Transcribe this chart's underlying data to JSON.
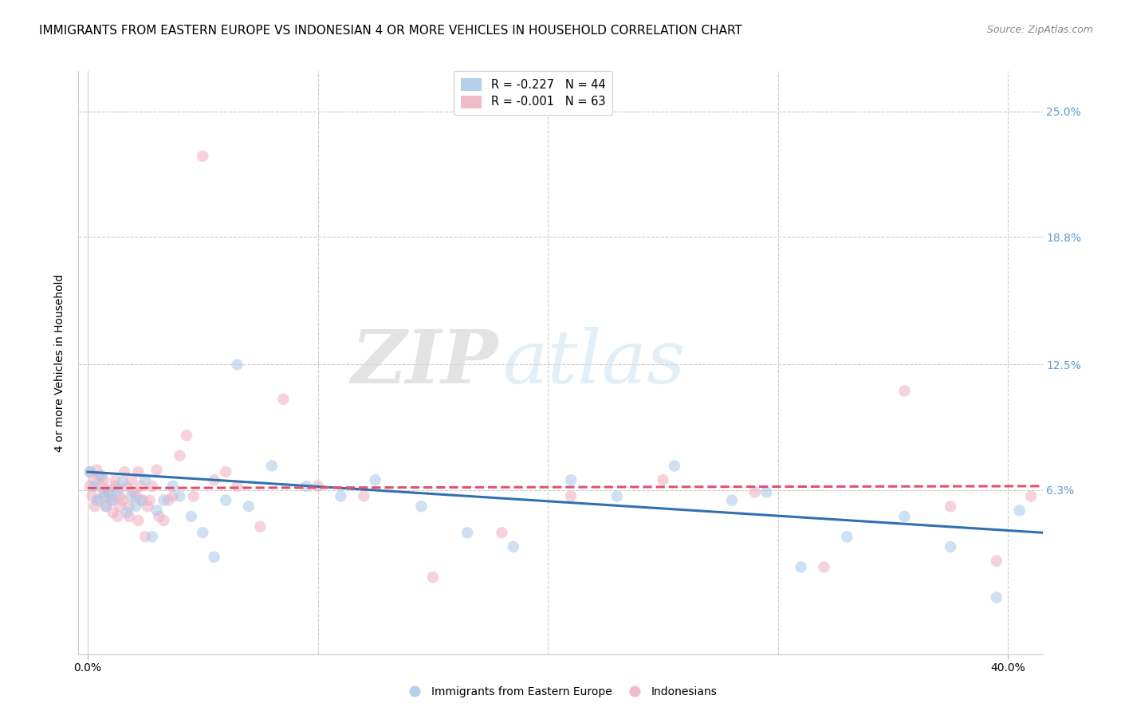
{
  "title": "IMMIGRANTS FROM EASTERN EUROPE VS INDONESIAN 4 OR MORE VEHICLES IN HOUSEHOLD CORRELATION CHART",
  "source": "Source: ZipAtlas.com",
  "ylabel": "4 or more Vehicles in Household",
  "ytick_values": [
    0.063,
    0.125,
    0.188,
    0.25
  ],
  "ytick_labels": [
    "6.3%",
    "12.5%",
    "18.8%",
    "25.0%"
  ],
  "ylim": [
    -0.018,
    0.27
  ],
  "xlim": [
    -0.004,
    0.415
  ],
  "xtick_positions": [
    0.0,
    0.1,
    0.2,
    0.3,
    0.4
  ],
  "xtick_labels": [
    "0.0%",
    "",
    "",
    "",
    "40.0%"
  ],
  "legend1_entries": [
    {
      "label": "R = -0.227   N = 44",
      "color": "#a8c8e8"
    },
    {
      "label": "R = -0.001   N = 63",
      "color": "#f0b0c0"
    }
  ],
  "blue_scatter_x": [
    0.001,
    0.003,
    0.004,
    0.006,
    0.007,
    0.008,
    0.009,
    0.011,
    0.013,
    0.015,
    0.017,
    0.019,
    0.021,
    0.023,
    0.025,
    0.028,
    0.03,
    0.033,
    0.037,
    0.04,
    0.045,
    0.05,
    0.055,
    0.06,
    0.065,
    0.07,
    0.08,
    0.095,
    0.11,
    0.125,
    0.145,
    0.165,
    0.185,
    0.21,
    0.23,
    0.255,
    0.28,
    0.295,
    0.31,
    0.33,
    0.355,
    0.375,
    0.395,
    0.405
  ],
  "blue_scatter_y": [
    0.072,
    0.065,
    0.058,
    0.07,
    0.06,
    0.055,
    0.062,
    0.058,
    0.063,
    0.067,
    0.052,
    0.06,
    0.055,
    0.058,
    0.068,
    0.04,
    0.053,
    0.058,
    0.065,
    0.06,
    0.05,
    0.042,
    0.03,
    0.058,
    0.125,
    0.055,
    0.075,
    0.065,
    0.06,
    0.068,
    0.055,
    0.042,
    0.035,
    0.068,
    0.06,
    0.075,
    0.058,
    0.062,
    0.025,
    0.04,
    0.05,
    0.035,
    0.01,
    0.053
  ],
  "pink_scatter_x": [
    0.001,
    0.001,
    0.002,
    0.003,
    0.003,
    0.004,
    0.005,
    0.005,
    0.006,
    0.007,
    0.007,
    0.008,
    0.009,
    0.01,
    0.01,
    0.011,
    0.012,
    0.012,
    0.013,
    0.014,
    0.014,
    0.015,
    0.016,
    0.017,
    0.018,
    0.018,
    0.019,
    0.02,
    0.021,
    0.022,
    0.022,
    0.023,
    0.024,
    0.025,
    0.026,
    0.027,
    0.028,
    0.03,
    0.031,
    0.033,
    0.035,
    0.037,
    0.04,
    0.043,
    0.046,
    0.05,
    0.055,
    0.06,
    0.065,
    0.075,
    0.085,
    0.1,
    0.12,
    0.15,
    0.18,
    0.21,
    0.25,
    0.29,
    0.32,
    0.355,
    0.375,
    0.395,
    0.41
  ],
  "pink_scatter_y": [
    0.065,
    0.072,
    0.06,
    0.068,
    0.055,
    0.073,
    0.07,
    0.058,
    0.065,
    0.062,
    0.068,
    0.055,
    0.063,
    0.06,
    0.058,
    0.052,
    0.068,
    0.065,
    0.05,
    0.06,
    0.055,
    0.058,
    0.072,
    0.065,
    0.055,
    0.05,
    0.068,
    0.062,
    0.06,
    0.072,
    0.048,
    0.065,
    0.058,
    0.04,
    0.055,
    0.058,
    0.065,
    0.073,
    0.05,
    0.048,
    0.058,
    0.06,
    0.08,
    0.09,
    0.06,
    0.228,
    0.068,
    0.072,
    0.065,
    0.045,
    0.108,
    0.065,
    0.06,
    0.02,
    0.042,
    0.06,
    0.068,
    0.062,
    0.025,
    0.112,
    0.055,
    0.028,
    0.06
  ],
  "blue_line_x": [
    0.0,
    0.415
  ],
  "blue_line_y": [
    0.072,
    0.042
  ],
  "pink_line_x": [
    0.0,
    0.415
  ],
  "pink_line_y": [
    0.064,
    0.065
  ],
  "scatter_size": 110,
  "scatter_alpha": 0.55,
  "blue_color": "#a8c8e8",
  "pink_color": "#f0b0c0",
  "blue_line_color": "#3070b0",
  "pink_line_color": "#e05070",
  "grid_color": "#cccccc",
  "bg_color": "#ffffff",
  "title_fontsize": 11,
  "source_fontsize": 9,
  "axis_label_fontsize": 10,
  "tick_fontsize": 10,
  "right_tick_color": "#5b9bd5",
  "watermark_color": "#c8dff0",
  "watermark_alpha": 0.5
}
